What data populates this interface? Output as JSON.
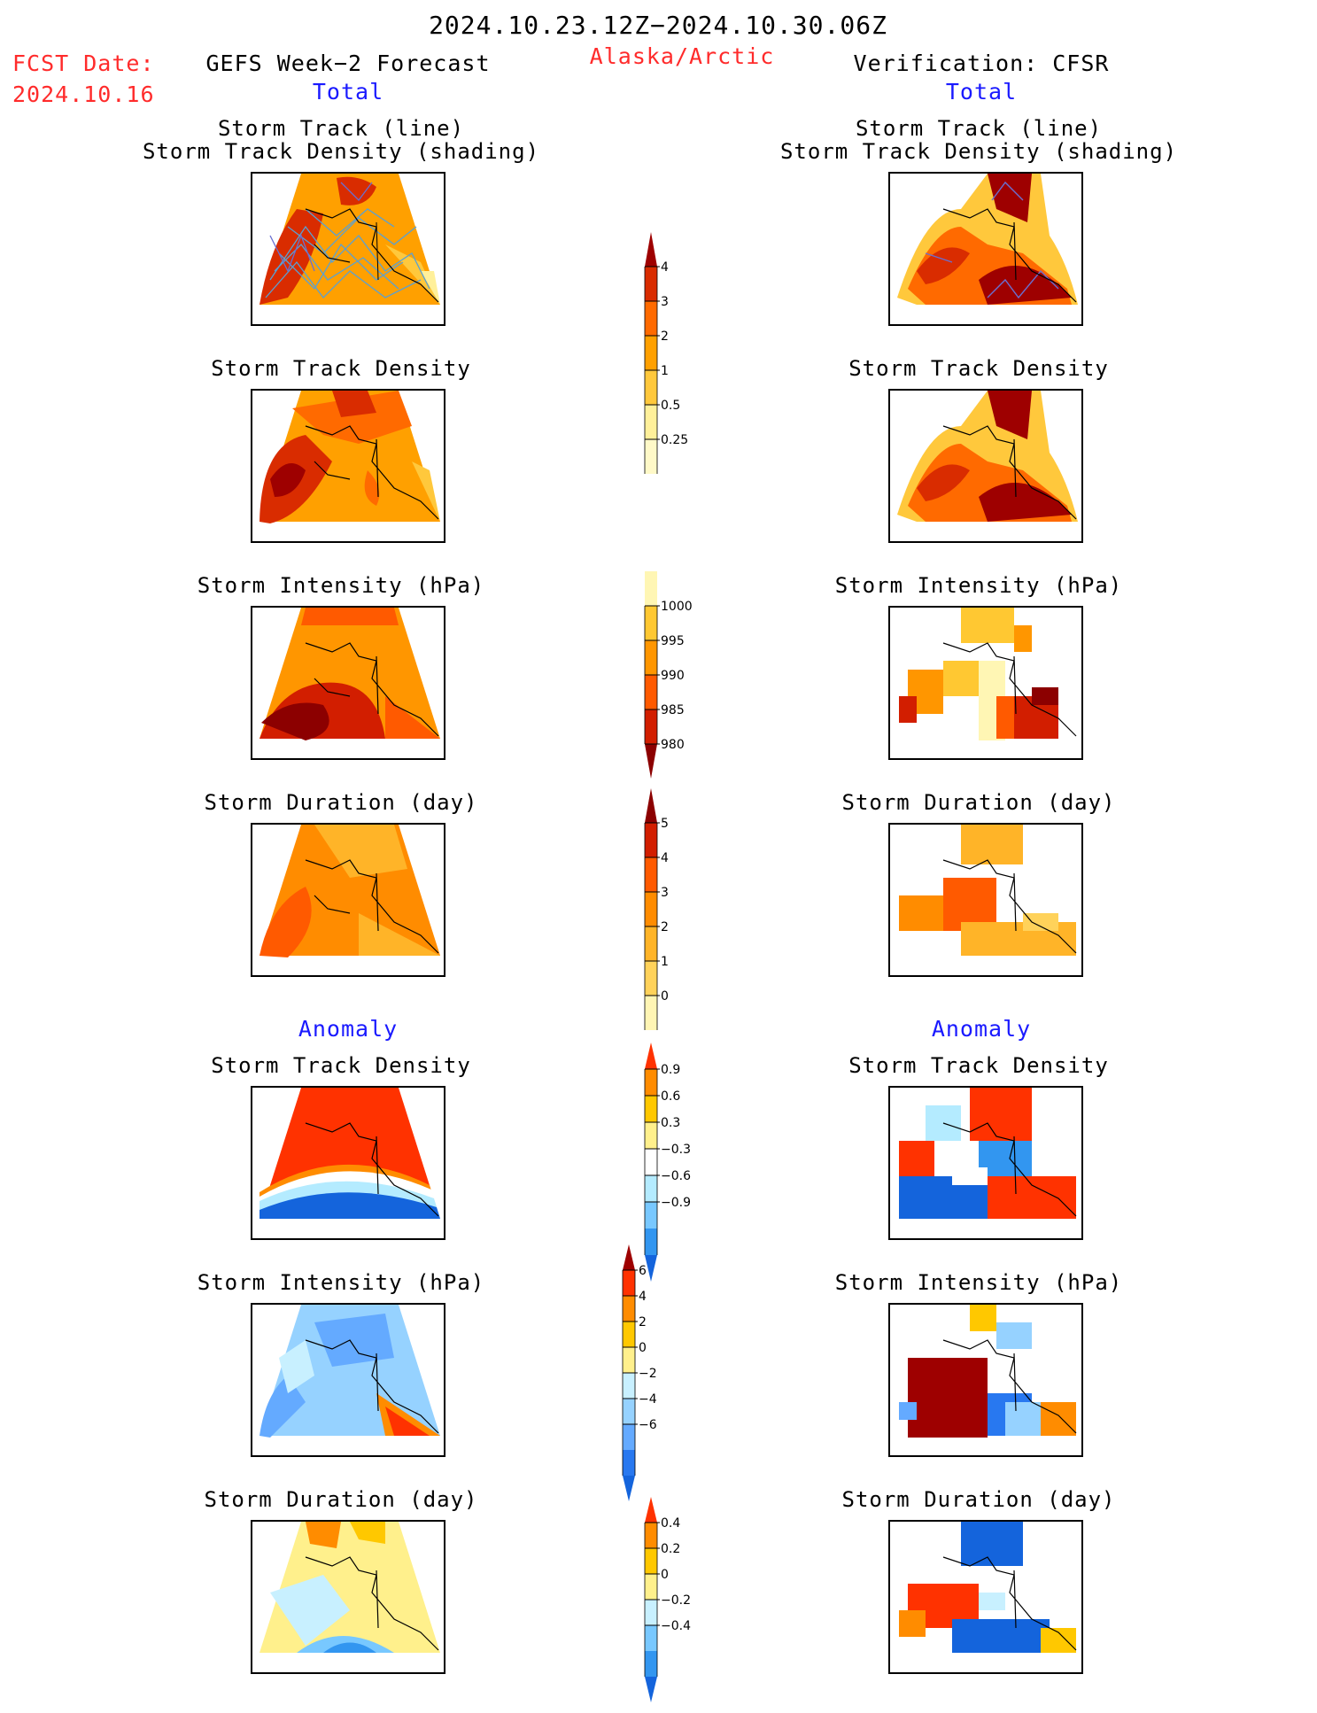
{
  "header": {
    "period": "2024.10.23.12Z−2024.10.30.06Z",
    "fcst_label": "FCST Date:",
    "fcst_date": "2024.10.16",
    "left_title": "GEFS Week−2 Forecast",
    "region": "Alaska/Arctic",
    "right_title": "Verification: CFSR",
    "left_sub": "Total",
    "right_sub": "Total",
    "anomaly_left": "Anomaly",
    "anomaly_right": "Anomaly"
  },
  "panels": {
    "track_line": "Storm Track (line)",
    "track_shading": "Storm Track Density (shading)",
    "density": "Storm Track Density",
    "intensity": "Storm Intensity (hPa)",
    "duration": "Storm Duration (day)"
  },
  "colorbars": {
    "density_total": {
      "labels": [
        "4",
        "3",
        "2",
        "1",
        "0.5",
        "0.25"
      ],
      "colors": [
        "#9e0000",
        "#d92c00",
        "#ff6a00",
        "#ffa000",
        "#ffc83c",
        "#fff09a",
        "#fff9c8"
      ]
    },
    "intensity_total": {
      "labels": [
        "1000",
        "995",
        "990",
        "985",
        "980"
      ],
      "colors": [
        "#fff6b4",
        "#ffc832",
        "#ff9600",
        "#ff5a00",
        "#d21e00",
        "#8c0000"
      ]
    },
    "duration_total": {
      "labels": [
        "5",
        "4",
        "3",
        "2",
        "1",
        "0"
      ],
      "colors": [
        "#8c0000",
        "#d21e00",
        "#ff5a00",
        "#ff8c00",
        "#ffb428",
        "#ffd25a",
        "#fff5b4"
      ]
    },
    "density_anom": {
      "labels": [
        "0.9",
        "0.6",
        "0.3",
        "−0.3",
        "−0.6",
        "−0.9"
      ],
      "colors": [
        "#ff3200",
        "#ff8c00",
        "#ffc800",
        "#fff08c",
        "#ffffff",
        "#b4ebff",
        "#78c8ff",
        "#3296f0",
        "#1464dc"
      ]
    },
    "intensity_anom": {
      "labels": [
        "6",
        "4",
        "2",
        "0",
        "−2",
        "−4",
        "−6"
      ],
      "colors": [
        "#9e0000",
        "#ff3200",
        "#ff8c00",
        "#ffc800",
        "#fff08c",
        "#c8f0ff",
        "#96d2ff",
        "#64aaff",
        "#2878f0",
        "#1464dc"
      ]
    },
    "duration_anom": {
      "labels": [
        "0.4",
        "0.2",
        "0",
        "−0.2",
        "−0.4"
      ],
      "colors": [
        "#ff3200",
        "#ff8c00",
        "#ffc800",
        "#fff08c",
        "#c8f0ff",
        "#78c8ff",
        "#3296f0",
        "#1464dc"
      ]
    }
  }
}
